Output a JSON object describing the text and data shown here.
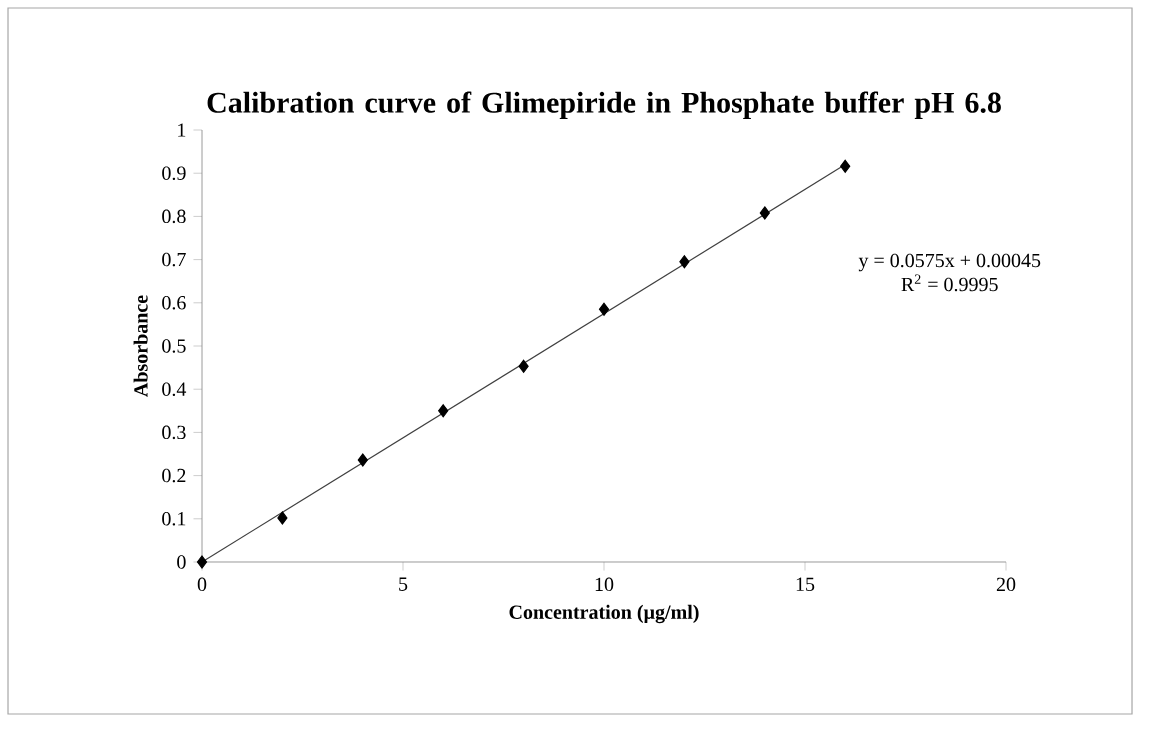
{
  "chart_data": {
    "type": "scatter",
    "title": "Calibration curve of Glimepiride in Phosphate buffer pH 6.8",
    "xlabel": "Concentration (µg/ml)",
    "ylabel": "Absorbance",
    "x": [
      0,
      2,
      4,
      6,
      8,
      10,
      12,
      14,
      16
    ],
    "series": [
      {
        "color": "#000000",
        "marker": "diamond",
        "values": [
          0,
          0.102,
          0.236,
          0.35,
          0.453,
          0.585,
          0.695,
          0.808,
          0.916
        ]
      },
      {
        "type": "line",
        "color": "#404040",
        "marker": "none",
        "x": [
          0,
          16
        ],
        "values": [
          0,
          0.92
        ]
      }
    ],
    "xlim": [
      0,
      20
    ],
    "xticks": [
      0,
      5,
      10,
      15,
      20
    ],
    "ylim": [
      0,
      1
    ],
    "yticks": [
      0,
      0.1,
      0.2,
      0.3,
      0.4,
      0.5,
      0.6,
      0.7,
      0.8,
      0.9,
      1
    ],
    "annotations": [
      "y = 0.0575x + 0.00045",
      "R$^{2}$ = 0.9995"
    ],
    "grid": false
  }
}
